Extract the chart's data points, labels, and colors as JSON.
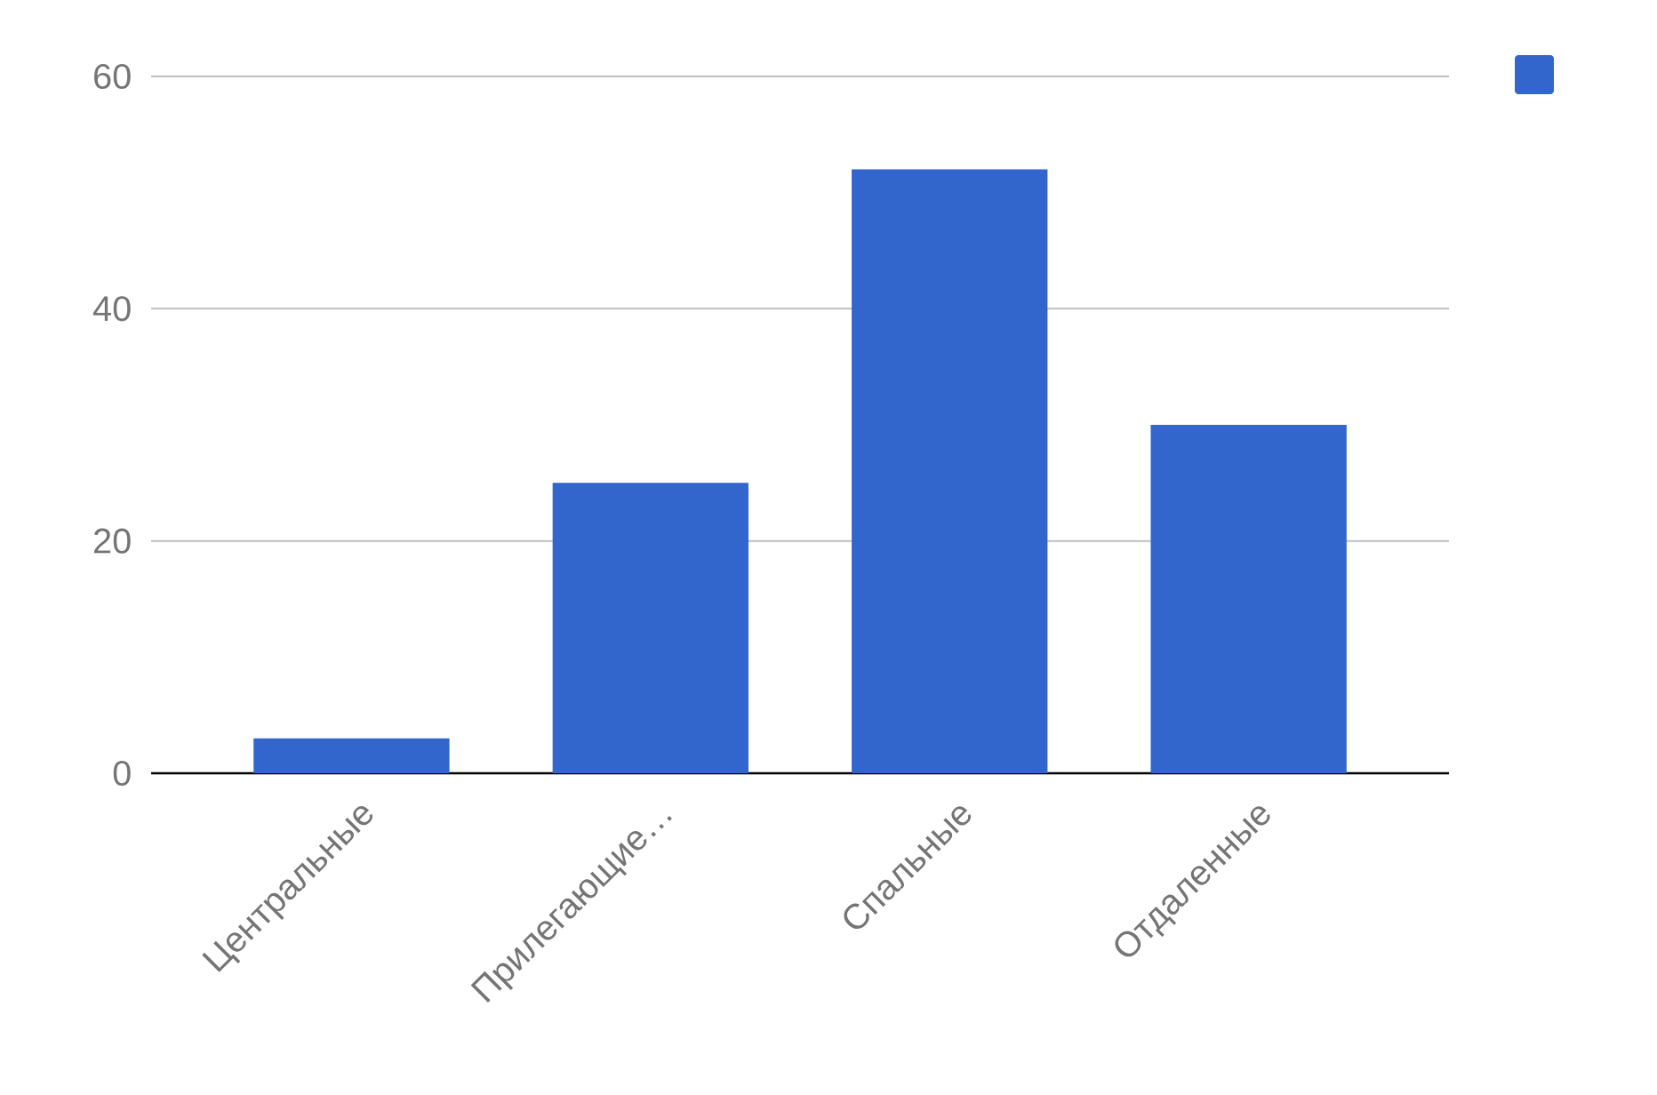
{
  "chart_data": {
    "type": "bar",
    "categories": [
      "Центральные",
      "Прилегающие…",
      "Спальные",
      "Отдаленные"
    ],
    "values": [
      3,
      25,
      52,
      30
    ],
    "color": "#3366cc",
    "ylim": [
      0,
      60
    ],
    "yticks": [
      0,
      20,
      40,
      60
    ],
    "grid": "y"
  }
}
